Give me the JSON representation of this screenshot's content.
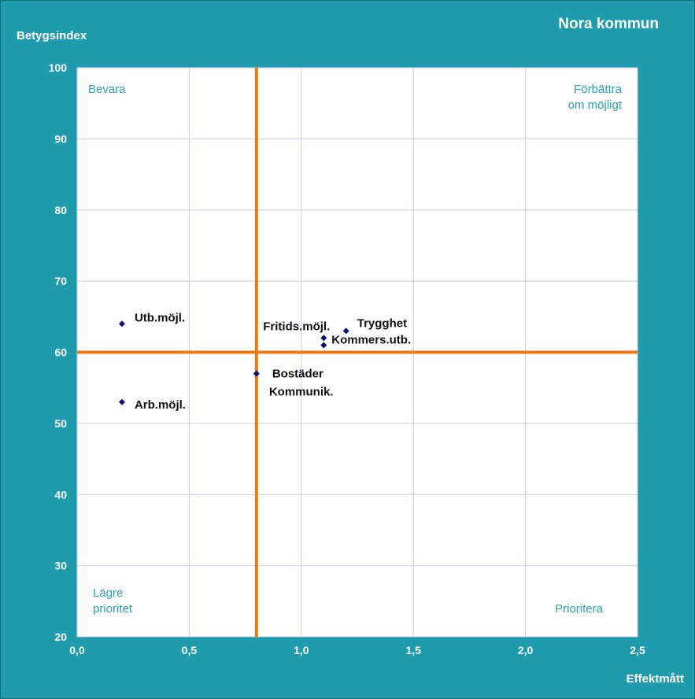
{
  "header": {
    "title": "Nora kommun",
    "ylabel": "Betygsindex",
    "xlabel": "Effektmått"
  },
  "colors": {
    "background": "#1e9bad",
    "plot": "#ffffff",
    "grid": "#c9c9e8",
    "divider": "#f07814",
    "marker": "#0d0d7a",
    "quadrant_text": "#2aa3b5"
  },
  "chart_data": {
    "type": "scatter",
    "title": "Nora kommun",
    "xlabel": "Effektmått",
    "ylabel": "Betygsindex",
    "xlim": [
      0,
      2.5
    ],
    "ylim": [
      20,
      100
    ],
    "xticks": [
      "0,0",
      "0,5",
      "1,0",
      "1,5",
      "2,0",
      "2,5"
    ],
    "xtick_values": [
      0,
      0.5,
      1.0,
      1.5,
      2.0,
      2.5
    ],
    "yticks": [
      "20",
      "30",
      "40",
      "50",
      "60",
      "70",
      "80",
      "90",
      "100"
    ],
    "ytick_values": [
      20,
      30,
      40,
      50,
      60,
      70,
      80,
      90,
      100
    ],
    "grid": true,
    "dividers": {
      "x": 0.8,
      "y": 60
    },
    "points": [
      {
        "label": "Utb.möjl.",
        "x": 0.2,
        "y": 64
      },
      {
        "label": "Arb.möjl.",
        "x": 0.2,
        "y": 53
      },
      {
        "label": "Bostäder",
        "x": 0.8,
        "y": 57
      },
      {
        "label": "Kommunik.",
        "x": 0.8,
        "y": 57
      },
      {
        "label": "Fritids.möjl.",
        "x": 1.1,
        "y": 62
      },
      {
        "label": "Kommers.utb.",
        "x": 1.1,
        "y": 61
      },
      {
        "label": "Trygghet",
        "x": 1.2,
        "y": 63
      }
    ],
    "quadrants": {
      "top_left": [
        "Bevara"
      ],
      "top_right": [
        "Förbättra",
        "om möjligt"
      ],
      "bottom_left": [
        "Lägre",
        "prioritet"
      ],
      "bottom_right": [
        "Prioritera"
      ]
    }
  }
}
